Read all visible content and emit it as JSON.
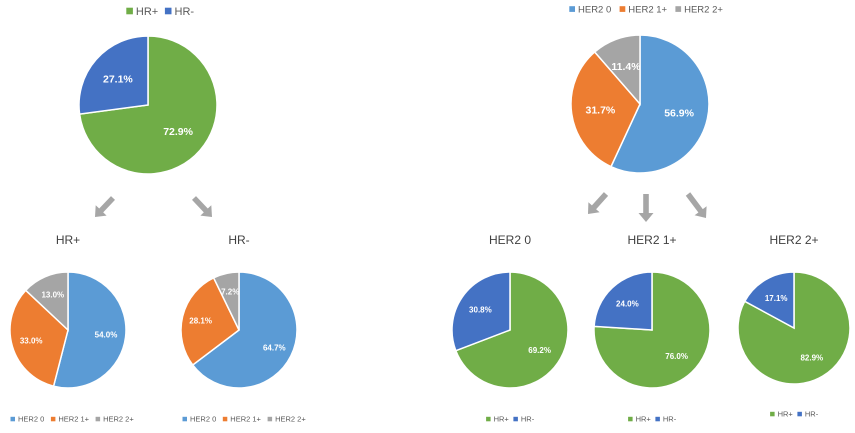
{
  "colors": {
    "hr_pos": "#70AD47",
    "hr_neg": "#4472C4",
    "her2_0": "#5B9BD5",
    "her2_1": "#ED7D31",
    "her2_2": "#A5A5A5",
    "arrow": "#A6A6A6"
  },
  "chart_data": [
    {
      "type": "pie",
      "title": "",
      "legend": [
        "HR+",
        "HR-"
      ],
      "legend_placement": "top",
      "categories": [
        "HR+",
        "HR-"
      ],
      "values": [
        72.9,
        27.1
      ],
      "labels": [
        "72.9%",
        "27.1%"
      ]
    },
    {
      "type": "pie",
      "title": "HR+",
      "legend": [
        "HER2 0",
        "HER2 1+",
        "HER2 2+"
      ],
      "legend_placement": "bottom",
      "categories": [
        "HER2 0",
        "HER2 1+",
        "HER2 2+"
      ],
      "values": [
        54.0,
        33.0,
        13.0
      ],
      "labels": [
        "54.0%",
        "33.0%",
        "13.0%"
      ]
    },
    {
      "type": "pie",
      "title": "HR-",
      "legend": [
        "HER2 0",
        "HER2 1+",
        "HER2 2+"
      ],
      "legend_placement": "bottom",
      "categories": [
        "HER2 0",
        "HER2 1+",
        "HER2 2+"
      ],
      "values": [
        64.7,
        28.1,
        7.2
      ],
      "labels": [
        "64.7%",
        "28.1%",
        "7.2%"
      ]
    },
    {
      "type": "pie",
      "title": "",
      "legend": [
        "HER2 0",
        "HER2 1+",
        "HER2 2+"
      ],
      "legend_placement": "top",
      "categories": [
        "HER2 0",
        "HER2 1+",
        "HER2 2+"
      ],
      "values": [
        56.9,
        31.7,
        11.4
      ],
      "labels": [
        "56.9%",
        "31.7%",
        "11.4%"
      ]
    },
    {
      "type": "pie",
      "title": "HER2 0",
      "legend": [
        "HR+",
        "HR-"
      ],
      "legend_placement": "bottom",
      "categories": [
        "HR+",
        "HR-"
      ],
      "values": [
        69.2,
        30.8
      ],
      "labels": [
        "69.2%",
        "30.8%"
      ]
    },
    {
      "type": "pie",
      "title": "HER2 1+",
      "legend": [
        "HR+",
        "HR-"
      ],
      "legend_placement": "bottom",
      "categories": [
        "HR+",
        "HR-"
      ],
      "values": [
        76.0,
        24.0
      ],
      "labels": [
        "76.0%",
        "24.0%"
      ]
    },
    {
      "type": "pie",
      "title": "HER2 2+",
      "legend": [
        "HR+",
        "HR-"
      ],
      "legend_placement": "bottom",
      "categories": [
        "HR+",
        "HR-"
      ],
      "values": [
        82.9,
        17.1
      ],
      "labels": [
        "82.9%",
        "17.1%"
      ]
    }
  ]
}
